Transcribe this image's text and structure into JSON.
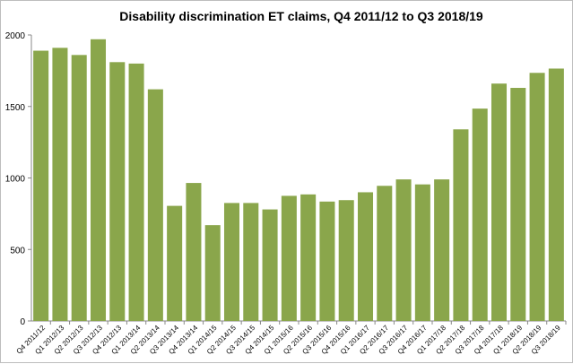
{
  "chart_data": {
    "type": "bar",
    "title": "Disability discrimination ET claims, Q4 2011/12 to Q3 2018/19",
    "xlabel": "",
    "ylabel": "",
    "ylim": [
      0,
      2000
    ],
    "yticks": [
      "0",
      "500",
      "1000",
      "1500",
      "2000"
    ],
    "grid": false,
    "color": "#8AA64B",
    "categories": [
      "Q4 2011/12",
      "Q1 2012/13",
      "Q2 2012/13",
      "Q3 2012/13",
      "Q4 2012/13",
      "Q1 2013/14",
      "Q2 2013/14",
      "Q3 2013/14",
      "Q4 2013/14",
      "Q1 2014/15",
      "Q2 2014/15",
      "Q3 2014/15",
      "Q4 2014/15",
      "Q1 2015/16",
      "Q2 2015/16",
      "Q3 2015/16",
      "Q4 2015/16",
      "Q1 2016/17",
      "Q2 2016/17",
      "Q3 2016/17",
      "Q4 2016/17",
      "Q1 2017/18",
      "Q2 2017/18",
      "Q3 2017/18",
      "Q4 2017/18",
      "Q1 2018/19",
      "Q2 2018/19",
      "Q3 2018/19"
    ],
    "values": [
      1890,
      1910,
      1860,
      1970,
      1810,
      1800,
      1620,
      805,
      965,
      670,
      825,
      825,
      780,
      875,
      885,
      835,
      845,
      900,
      945,
      990,
      955,
      990,
      1340,
      1485,
      1660,
      1630,
      1735,
      1765
    ]
  }
}
